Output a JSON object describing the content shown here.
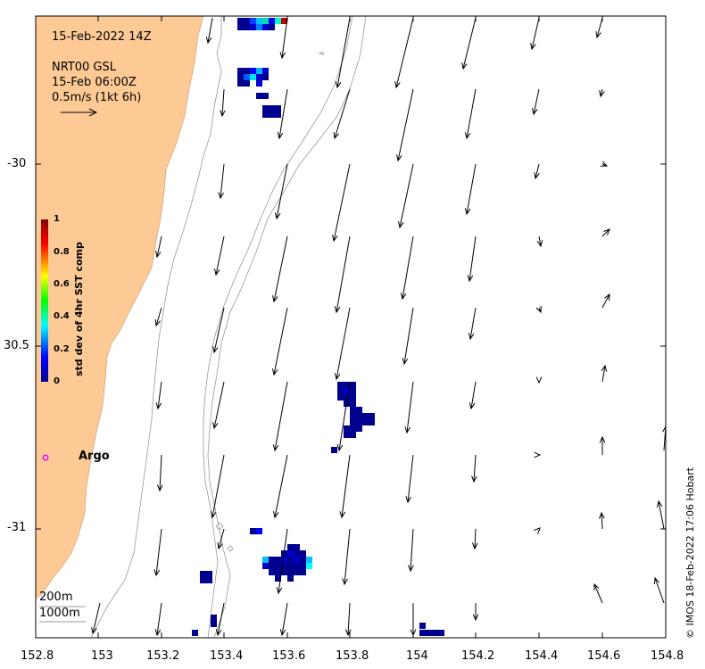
{
  "header": {
    "datetime": "15-Feb-2022 14Z",
    "product": "NRT00 GSL",
    "current_time": "15-Feb 06:00Z",
    "scale_label": "0.5m/s (1kt 6h)"
  },
  "axes": {
    "x_ticks": [
      "152.8",
      "153",
      "153.2",
      "153.4",
      "153.6",
      "153.8",
      "154",
      "154.2",
      "154.4",
      "154.6",
      "154.8"
    ],
    "y_ticks": [
      "-30",
      "30.5",
      "-31"
    ]
  },
  "colorbar": {
    "label": "std dev of 4hr SST comp",
    "ticks": [
      "1",
      "0.8",
      "0.6",
      "0.4",
      "0.2",
      "0"
    ]
  },
  "argo": {
    "label": "Argo",
    "color": "#ff00ff"
  },
  "bathymetry_legend": {
    "line1": "200m",
    "line2": "1000m"
  },
  "credit": "© IMOS 18-Feb-2022 17:06 Hobart",
  "colors": {
    "land": "#fdca96",
    "arrows": "#000000",
    "contours": "#999999"
  }
}
